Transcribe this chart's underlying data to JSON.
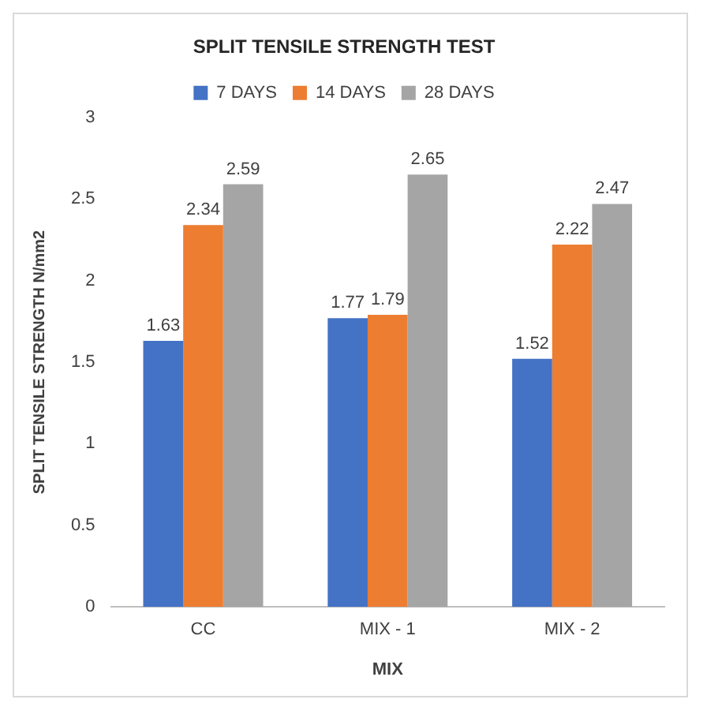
{
  "chart_data": {
    "type": "bar",
    "title": "SPLIT TENSILE STRENGTH TEST",
    "xlabel": "MIX",
    "ylabel": "SPLIT TENSILE STRENGTH N/mm2",
    "categories": [
      "CC",
      "MIX - 1",
      "MIX - 2"
    ],
    "series": [
      {
        "name": "7 DAYS",
        "color": "#4472c4",
        "values": [
          1.63,
          1.77,
          1.52
        ]
      },
      {
        "name": "14 DAYS",
        "color": "#ed7d31",
        "values": [
          2.34,
          1.79,
          2.22
        ]
      },
      {
        "name": "28 DAYS",
        "color": "#a5a5a5",
        "values": [
          2.59,
          2.65,
          2.47
        ]
      }
    ],
    "ylim": [
      0,
      3
    ],
    "yticks": [
      0,
      0.5,
      1,
      1.5,
      2,
      2.5,
      3
    ],
    "grid": false,
    "legend": "top",
    "data_labels": true
  }
}
